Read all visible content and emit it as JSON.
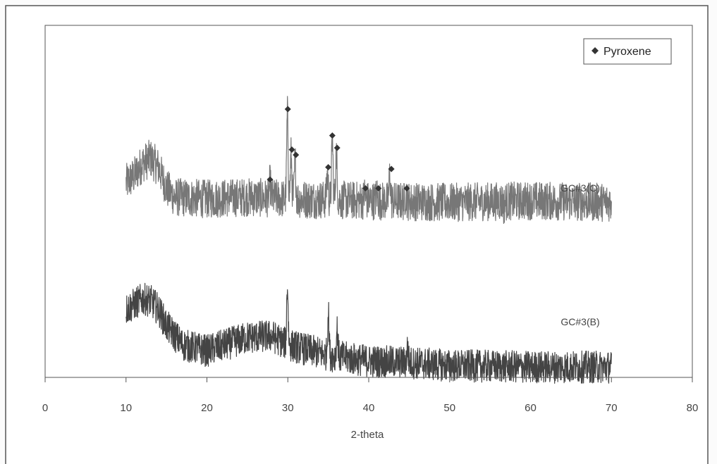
{
  "chart_data": {
    "type": "line",
    "xlabel": "2-theta",
    "ylabel": "",
    "xlim": [
      0,
      80
    ],
    "xticks": [
      0,
      10,
      20,
      30,
      40,
      50,
      60,
      70,
      80
    ],
    "grid": false,
    "y_axis_shown": false,
    "legend": {
      "position": "top-right",
      "entries": [
        {
          "marker": "diamond",
          "label": "Pyroxene"
        }
      ]
    },
    "marker_color": "#333333",
    "series": [
      {
        "name": "GC#3(C)",
        "color": "#777777",
        "x_range": [
          10,
          70
        ],
        "baseline_profile": [
          [
            10,
            0.58
          ],
          [
            11,
            0.62
          ],
          [
            12,
            0.69
          ],
          [
            13,
            0.72
          ],
          [
            14,
            0.67
          ],
          [
            15,
            0.55
          ],
          [
            16,
            0.5
          ],
          [
            20,
            0.49
          ],
          [
            25,
            0.5
          ],
          [
            30,
            0.49
          ],
          [
            40,
            0.48
          ],
          [
            50,
            0.47
          ],
          [
            60,
            0.48
          ],
          [
            70,
            0.47
          ]
        ],
        "peaks": [
          {
            "x": 27.8,
            "height": 0.58
          },
          {
            "x": 29.95,
            "height": 0.97
          },
          {
            "x": 30.4,
            "height": 0.74
          },
          {
            "x": 30.9,
            "height": 0.71
          },
          {
            "x": 34.9,
            "height": 0.64
          },
          {
            "x": 35.5,
            "height": 0.82
          },
          {
            "x": 36.0,
            "height": 0.75
          },
          {
            "x": 39.5,
            "height": 0.52
          },
          {
            "x": 41.0,
            "height": 0.52
          },
          {
            "x": 42.6,
            "height": 0.63
          },
          {
            "x": 44.6,
            "height": 0.52
          },
          {
            "x": 56.7,
            "height": 0.45
          }
        ],
        "noise_amplitude": 0.11
      },
      {
        "name": "GC#3(B)",
        "color": "#444444",
        "x_range": [
          10,
          70
        ],
        "baseline_profile": [
          [
            10,
            0.66
          ],
          [
            12,
            0.73
          ],
          [
            13,
            0.72
          ],
          [
            14,
            0.66
          ],
          [
            15,
            0.55
          ],
          [
            17,
            0.42
          ],
          [
            20,
            0.38
          ],
          [
            25,
            0.47
          ],
          [
            28,
            0.48
          ],
          [
            30,
            0.42
          ],
          [
            35,
            0.35
          ],
          [
            40,
            0.31
          ],
          [
            45,
            0.3
          ],
          [
            50,
            0.28
          ],
          [
            60,
            0.27
          ],
          [
            70,
            0.27
          ]
        ],
        "peaks": [
          {
            "x": 29.95,
            "height": 0.82
          },
          {
            "x": 35.0,
            "height": 0.65
          },
          {
            "x": 36.1,
            "height": 0.53
          },
          {
            "x": 44.8,
            "height": 0.4
          }
        ],
        "noise_amplitude": 0.11
      }
    ],
    "annotations": {
      "pyroxene_markers": [
        {
          "x": 27.8,
          "height": 0.6
        },
        {
          "x": 30.0,
          "height": 1.0
        },
        {
          "x": 30.5,
          "height": 0.77
        },
        {
          "x": 31.0,
          "height": 0.74
        },
        {
          "x": 35.0,
          "height": 0.67
        },
        {
          "x": 35.5,
          "height": 0.85
        },
        {
          "x": 36.1,
          "height": 0.78
        },
        {
          "x": 39.6,
          "height": 0.55
        },
        {
          "x": 41.2,
          "height": 0.55
        },
        {
          "x": 42.8,
          "height": 0.66
        },
        {
          "x": 44.7,
          "height": 0.55
        }
      ]
    }
  }
}
